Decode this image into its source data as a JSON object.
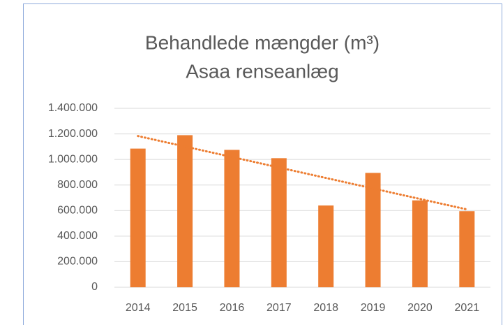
{
  "chart_data": {
    "type": "bar",
    "title": "Behandlede mængder (m³)",
    "subtitle": "Asaa renseanlæg",
    "categories": [
      "2014",
      "2015",
      "2016",
      "2017",
      "2018",
      "2019",
      "2020",
      "2021"
    ],
    "values": [
      1085000,
      1190000,
      1075000,
      1010000,
      640000,
      895000,
      680000,
      595000
    ],
    "color": "#ed7d31",
    "trendline": "linear",
    "ylim": [
      0,
      1400000
    ],
    "yticks": [
      0,
      {
        "value": 200000,
        "label": "200.000"
      },
      {
        "value": 400000,
        "label": "400.000"
      },
      {
        "value": 600000,
        "label": "600.000"
      },
      {
        "value": 800000,
        "label": "800.000"
      },
      {
        "value": 1000000,
        "label": "1.000.000"
      },
      {
        "value": 1200000,
        "label": "1.200.000"
      },
      {
        "value": 1400000,
        "label": "1.400.000"
      }
    ],
    "grid": true
  }
}
